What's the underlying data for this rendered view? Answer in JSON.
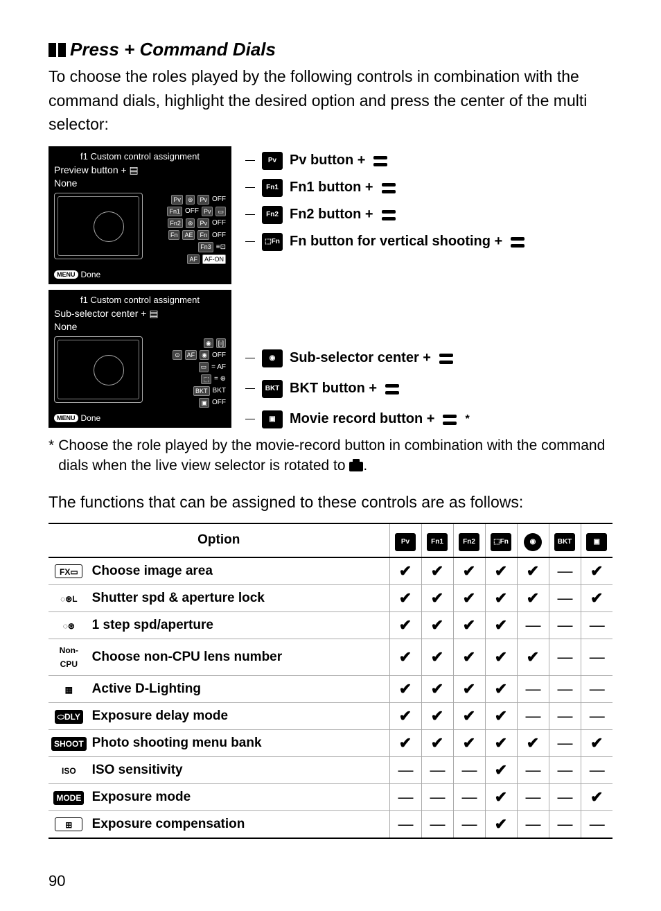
{
  "page_number": "90",
  "heading": "Press + Command Dials",
  "intro": "To choose the roles played by the following controls in combination with the command dials, highlight the desired option and press the center of the multi selector:",
  "lcd_top": {
    "title": "f1 Custom control assignment",
    "sub": "Preview button + ▤",
    "value": "None",
    "done": "Done"
  },
  "lcd_bottom": {
    "title": "f1 Custom control assignment",
    "sub": "Sub-selector center + ▤",
    "value": "None",
    "done": "Done"
  },
  "callouts_top": [
    {
      "icon": "Pv",
      "label": "Pv button + "
    },
    {
      "icon": "Fn1",
      "label": "Fn1 button + "
    },
    {
      "icon": "Fn2",
      "label": "Fn2 button + "
    },
    {
      "icon": "⬚Fn",
      "label": "Fn button for vertical shooting + "
    }
  ],
  "callouts_bottom": [
    {
      "icon": "◉",
      "label": "Sub-selector center + "
    },
    {
      "icon": "BKT",
      "label": "BKT button + "
    },
    {
      "icon": "▣",
      "label": "Movie record button + ",
      "suffix": "*"
    }
  ],
  "footnote": "Choose the role played by the movie-record button in combination with the command dials when the live view selector is rotated to ",
  "footnote_tail": ".",
  "table_intro": "The functions that can be assigned to these controls are as follows:",
  "table": {
    "header_option": "Option",
    "header_icons": [
      "Pv",
      "Fn1",
      "Fn2",
      "⬚Fn",
      "◉",
      "BKT",
      "▣"
    ],
    "rows": [
      {
        "icon_text": "FX▭",
        "icon_style": "outlined",
        "label": "Choose image area",
        "cells": [
          "✔",
          "✔",
          "✔",
          "✔",
          "✔",
          "—",
          "✔"
        ]
      },
      {
        "icon_text": "◌⊛L",
        "icon_style": "plain",
        "label": "Shutter spd & aperture lock",
        "cells": [
          "✔",
          "✔",
          "✔",
          "✔",
          "✔",
          "—",
          "✔"
        ]
      },
      {
        "icon_text": "◌⊛",
        "icon_style": "plain",
        "label": "1 step spd/aperture",
        "cells": [
          "✔",
          "✔",
          "✔",
          "✔",
          "—",
          "—",
          "—"
        ]
      },
      {
        "icon_text": "Non-CPU",
        "icon_style": "plain",
        "label": "Choose non-CPU lens number",
        "cells": [
          "✔",
          "✔",
          "✔",
          "✔",
          "✔",
          "—",
          "—"
        ]
      },
      {
        "icon_text": "▦",
        "icon_style": "plain",
        "label": "Active D-Lighting",
        "cells": [
          "✔",
          "✔",
          "✔",
          "✔",
          "—",
          "—",
          "—"
        ]
      },
      {
        "icon_text": "⬭DLY",
        "icon_style": "boxed",
        "label": "Exposure delay mode",
        "cells": [
          "✔",
          "✔",
          "✔",
          "✔",
          "—",
          "—",
          "—"
        ]
      },
      {
        "icon_text": "SHOOT",
        "icon_style": "boxed",
        "label": "Photo shooting menu bank",
        "cells": [
          "✔",
          "✔",
          "✔",
          "✔",
          "✔",
          "—",
          "✔"
        ]
      },
      {
        "icon_text": "ISO",
        "icon_style": "plain",
        "label": "ISO sensitivity",
        "cells": [
          "—",
          "—",
          "—",
          "✔",
          "—",
          "—",
          "—"
        ]
      },
      {
        "icon_text": "MODE",
        "icon_style": "boxed",
        "label": "Exposure mode",
        "cells": [
          "—",
          "—",
          "—",
          "✔",
          "—",
          "—",
          "✔"
        ]
      },
      {
        "icon_text": "⊞",
        "icon_style": "outlined",
        "label": "Exposure compensation",
        "cells": [
          "—",
          "—",
          "—",
          "✔",
          "—",
          "—",
          "—"
        ]
      }
    ]
  }
}
